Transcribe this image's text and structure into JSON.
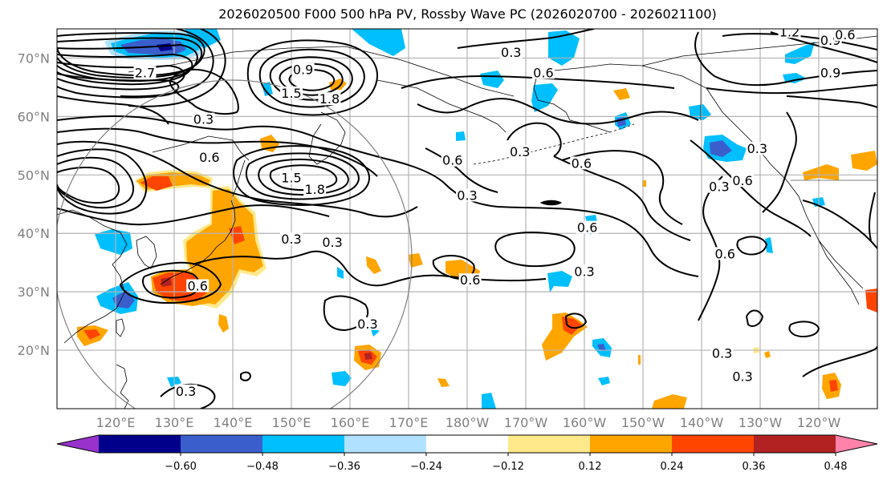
{
  "title": "2026020500 F000 500 hPa PV, Rossby Wave PC (2026020700 - 2026021100)",
  "map": {
    "projection": "PlateCarree",
    "extent": {
      "lon_min": 110,
      "lon_max": 250,
      "lat_min": 10,
      "lat_max": 75
    },
    "lat_ticks": [
      {
        "value": 70,
        "label": "70°N"
      },
      {
        "value": 60,
        "label": "60°N"
      },
      {
        "value": 50,
        "label": "50°N"
      },
      {
        "value": 40,
        "label": "40°N"
      },
      {
        "value": 30,
        "label": "30°N"
      },
      {
        "value": 20,
        "label": "20°N"
      }
    ],
    "lon_ticks": [
      {
        "value": 120,
        "label": "120°E"
      },
      {
        "value": 130,
        "label": "130°E"
      },
      {
        "value": 140,
        "label": "140°E"
      },
      {
        "value": 150,
        "label": "150°E"
      },
      {
        "value": 160,
        "label": "160°E"
      },
      {
        "value": 170,
        "label": "170°E"
      },
      {
        "value": 180,
        "label": "180°W"
      },
      {
        "value": 190,
        "label": "170°W"
      },
      {
        "value": 200,
        "label": "160°W"
      },
      {
        "value": 210,
        "label": "150°W"
      },
      {
        "value": 220,
        "label": "140°W"
      },
      {
        "value": 230,
        "label": "130°W"
      },
      {
        "value": 240,
        "label": "120°W"
      }
    ],
    "gridline_color": "#b3b3b3",
    "tick_label_color": "#808080",
    "contour_field": "500 hPa PV (PVU)",
    "contour_labels": [
      {
        "text": "0.9",
        "lon": 152,
        "lat": 67.5
      },
      {
        "text": "1.5",
        "lon": 150,
        "lat": 63.5
      },
      {
        "text": "1.8",
        "lon": 156.5,
        "lat": 62.5
      },
      {
        "text": "2.7",
        "lon": 125,
        "lat": 67
      },
      {
        "text": "0.3",
        "lon": 135,
        "lat": 59
      },
      {
        "text": "0.6",
        "lon": 136,
        "lat": 52.5
      },
      {
        "text": "1.5",
        "lon": 150,
        "lat": 49
      },
      {
        "text": "1.8",
        "lon": 154,
        "lat": 47
      },
      {
        "text": "0.3",
        "lon": 150,
        "lat": 38.5
      },
      {
        "text": "0.3",
        "lon": 157,
        "lat": 38
      },
      {
        "text": "0.6",
        "lon": 134,
        "lat": 30.5
      },
      {
        "text": "0.3",
        "lon": 163,
        "lat": 24
      },
      {
        "text": "0.3",
        "lon": 132,
        "lat": 12.5
      },
      {
        "text": "0.3",
        "lon": 187.5,
        "lat": 70.5
      },
      {
        "text": "0.6",
        "lon": 193,
        "lat": 67
      },
      {
        "text": "0.6",
        "lon": 177.5,
        "lat": 52
      },
      {
        "text": "0.3",
        "lon": 180,
        "lat": 46
      },
      {
        "text": "0.3",
        "lon": 189,
        "lat": 53.5
      },
      {
        "text": "0.6",
        "lon": 199.5,
        "lat": 51.5
      },
      {
        "text": "0.6",
        "lon": 200.5,
        "lat": 40.5
      },
      {
        "text": "0.3",
        "lon": 200,
        "lat": 33
      },
      {
        "text": "0.6",
        "lon": 180.5,
        "lat": 31.5
      },
      {
        "text": "0.3",
        "lon": 223,
        "lat": 47.5
      },
      {
        "text": "0.6",
        "lon": 227,
        "lat": 48.5
      },
      {
        "text": "0.3",
        "lon": 229.5,
        "lat": 54
      },
      {
        "text": "0.3",
        "lon": 223.5,
        "lat": 19
      },
      {
        "text": "0.3",
        "lon": 227,
        "lat": 15
      },
      {
        "text": "0.6",
        "lon": 224,
        "lat": 36
      },
      {
        "text": "1.2",
        "lon": 235,
        "lat": 74
      },
      {
        "text": "0.9",
        "lon": 242,
        "lat": 72.5
      },
      {
        "text": "0.6",
        "lon": 244.5,
        "lat": 73.5
      },
      {
        "text": "0.9",
        "lon": 242,
        "lat": 67
      }
    ]
  },
  "colorbar": {
    "label": "Rossby Wave PC",
    "boundaries": [
      -0.6,
      -0.48,
      -0.36,
      -0.24,
      -0.12,
      0.12,
      0.24,
      0.36,
      0.48,
      0.6
    ],
    "tick_labels": [
      "−0.60",
      "−0.48",
      "−0.36",
      "−0.24",
      "−0.12",
      "0.12",
      "0.24",
      "0.36",
      "0.48",
      "0.60"
    ],
    "colors": [
      "#9932cc",
      "#00008b",
      "#3a5fcd",
      "#00bfff",
      "#b0e2ff",
      "#ffffff",
      "#ffe98a",
      "#ffa500",
      "#ff4500",
      "#b22222",
      "#ff82ab"
    ],
    "extend": "both"
  }
}
